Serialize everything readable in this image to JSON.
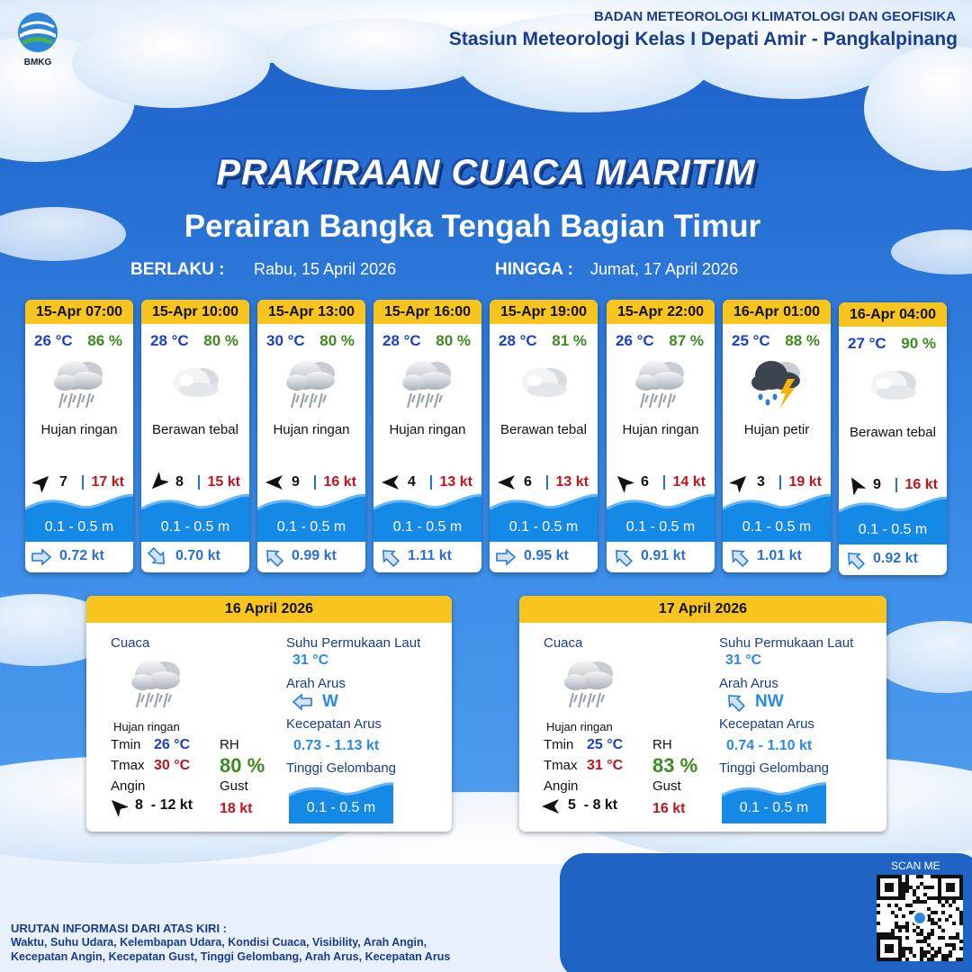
{
  "header": {
    "logo_text": "BMKG",
    "agency": "BADAN METEOROLOGI KLIMATOLOGI DAN GEOFISIKA",
    "station": "Stasiun Meteorologi Kelas I Depati Amir - Pangkalpinang"
  },
  "title": "PRAKIRAAN CUACA MARITIM",
  "subtitle": "Perairan Bangka Tengah Bagian Timur",
  "validity": {
    "from_label": "BERLAKU :",
    "from": "Rabu, 15 April 2026",
    "to_label": "HINGGA :",
    "to": "Jumat, 17 April 2026"
  },
  "forecasts": [
    {
      "time": "15-Apr 07:00",
      "temperature": "26 °C",
      "humidity": "86 %",
      "weather": "Hujan ringan",
      "wind_speed": "7",
      "gust": "17 kt",
      "wave": "0.1 - 0.5 m",
      "current_speed": "0.72 kt"
    },
    {
      "time": "15-Apr 10:00",
      "temperature": "28 °C",
      "humidity": "80 %",
      "weather": "Berawan tebal",
      "wind_speed": "8",
      "gust": "15 kt",
      "wave": "0.1 - 0.5 m",
      "current_speed": "0.70 kt"
    },
    {
      "time": "15-Apr 13:00",
      "temperature": "30 °C",
      "humidity": "80 %",
      "weather": "Hujan ringan",
      "wind_speed": "9",
      "gust": "16 kt",
      "wave": "0.1 - 0.5 m",
      "current_speed": "0.99 kt"
    },
    {
      "time": "15-Apr 16:00",
      "temperature": "28 °C",
      "humidity": "80 %",
      "weather": "Hujan ringan",
      "wind_speed": "4",
      "gust": "13 kt",
      "wave": "0.1 - 0.5 m",
      "current_speed": "1.11 kt"
    },
    {
      "time": "15-Apr 19:00",
      "temperature": "28 °C",
      "humidity": "81 %",
      "weather": "Berawan tebal",
      "wind_speed": "6",
      "gust": "13 kt",
      "wave": "0.1 - 0.5 m",
      "current_speed": "0.95 kt"
    },
    {
      "time": "15-Apr 22:00",
      "temperature": "26 °C",
      "humidity": "87 %",
      "weather": "Hujan ringan",
      "wind_speed": "6",
      "gust": "14 kt",
      "wave": "0.1 - 0.5 m",
      "current_speed": "0.91 kt"
    },
    {
      "time": "16-Apr 01:00",
      "temperature": "25 °C",
      "humidity": "88 %",
      "weather": "Hujan petir",
      "wind_speed": "3",
      "gust": "19 kt",
      "wave": "0.1 - 0.5 m",
      "current_speed": "1.01 kt"
    },
    {
      "time": "16-Apr 04:00",
      "temperature": "27 °C",
      "humidity": "90 %",
      "weather": "Berawan tebal",
      "wind_speed": "9",
      "gust": "16 kt",
      "wave": "0.1 - 0.5 m",
      "current_speed": "0.92 kt"
    }
  ],
  "daily": [
    {
      "date": "16 April 2026",
      "weather_label": "Cuaca",
      "weather": "Hujan ringan",
      "tmin_label": "Tmin",
      "tmin": "26 °C",
      "tmax_label": "Tmax",
      "tmax": "30 °C",
      "wind_label": "Angin",
      "wind": "8  - 12 kt",
      "rh_label": "RH",
      "rh": "80 %",
      "gust_label": "Gust",
      "gust": "18 kt",
      "sst_label": "Suhu Permukaan Laut",
      "sst": "31 °C",
      "current_dir_label": "Arah Arus",
      "current_dir": "W",
      "current_speed_label": "Kecepatan Arus",
      "current_speed": "0.73 - 1.13 kt",
      "wave_label": "Tinggi Gelombang",
      "wave": "0.1 - 0.5 m"
    },
    {
      "date": "17 April 2026",
      "weather_label": "Cuaca",
      "weather": "Hujan ringan",
      "tmin_label": "Tmin",
      "tmin": "25 °C",
      "tmax_label": "Tmax",
      "tmax": "31 °C",
      "wind_label": "Angin",
      "wind": "5  - 8 kt",
      "rh_label": "RH",
      "rh": "83 %",
      "gust_label": "Gust",
      "gust": "16 kt",
      "sst_label": "Suhu Permukaan Laut",
      "sst": "31 °C",
      "current_dir_label": "Arah Arus",
      "current_dir": "NW",
      "current_speed_label": "Kecepatan Arus",
      "current_speed": "0.74 - 1.10 kt",
      "wave_label": "Tinggi Gelombang",
      "wave": "0.1 - 0.5 m"
    }
  ],
  "footer": {
    "scan_me": "SCAN ME",
    "legend_title": "URUTAN INFORMASI DARI ATAS KIRI :",
    "legend_lines": [
      "Waktu, Suhu Udara, Kelembapan Udara, Kondisi Cuaca, Visibility, Arah Angin,",
      "Kecepatan Angin, Kecepatan Gust, Tinggi Gelombang, Arah Arus, Kecepatan Arus"
    ]
  }
}
